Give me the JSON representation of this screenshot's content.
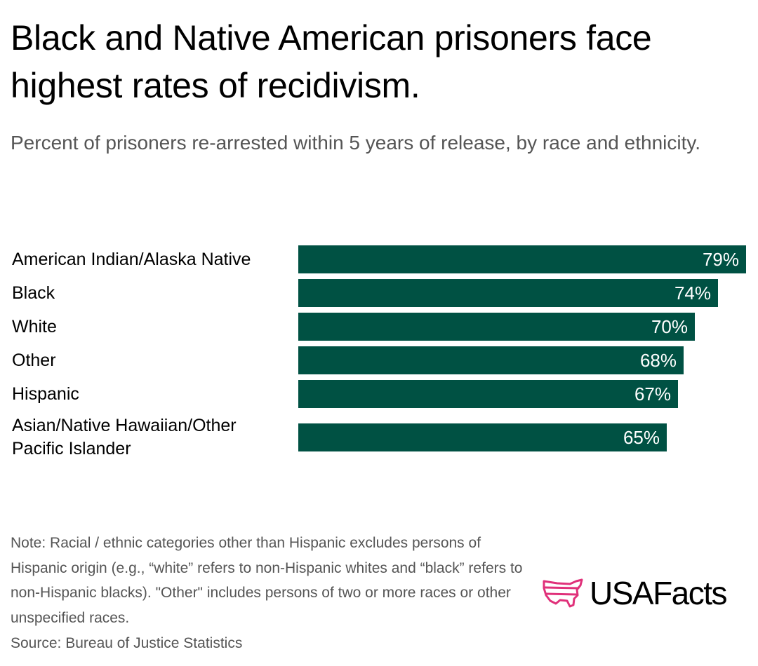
{
  "header": {
    "title": "Black and Native American prisoners face highest rates of recidivism.",
    "subtitle": "Percent of prisoners re-arrested within 5 years of release, by race and ethnicity."
  },
  "chart_data": {
    "type": "bar",
    "orientation": "horizontal",
    "title": "Black and Native American prisoners face highest rates of recidivism.",
    "subtitle": "Percent of prisoners re-arrested within 5 years of release, by race and ethnicity.",
    "xlabel": "",
    "ylabel": "",
    "unit": "%",
    "xlim": [
      0,
      79
    ],
    "grid": false,
    "categories": [
      "American Indian/Alaska Native",
      "Black",
      "White",
      "Other",
      "Hispanic",
      "Asian/Native Hawaiian/Other Pacific Islander"
    ],
    "category_lines": [
      [
        "American Indian/Alaska Native"
      ],
      [
        "Black"
      ],
      [
        "White"
      ],
      [
        "Other"
      ],
      [
        "Hispanic"
      ],
      [
        "Asian/Native Hawaiian/Other",
        "Pacific Islander"
      ]
    ],
    "values": [
      79,
      74,
      70,
      68,
      67,
      65
    ],
    "value_labels": [
      "79%",
      "74%",
      "70%",
      "68%",
      "67%",
      "65%"
    ],
    "bar_color": "#005143",
    "value_label_color": "#ffffff"
  },
  "footer": {
    "note": "Note: Racial / ethnic categories other than Hispanic excludes persons of Hispanic origin (e.g., “white” refers to non-Hispanic whites and “black” refers to non-Hispanic blacks). \"Other\" includes persons of two or more races or other unspecified races.",
    "source": "Source: Bureau of Justice Statistics"
  },
  "branding": {
    "logo_text": "USAFacts",
    "logo_icon": "us-map-icon",
    "logo_icon_color": "#e0317a"
  }
}
